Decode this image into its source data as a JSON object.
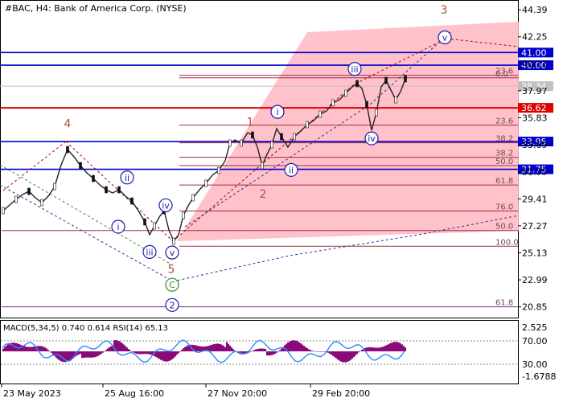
{
  "chart_data": {
    "type": "line",
    "title": "#BAC, H4:  Bank of America Corp. (NYSE)",
    "price_axis": {
      "ticks": [
        44.39,
        42.25,
        40.11,
        37.97,
        35.83,
        33.69,
        31.55,
        29.41,
        27.27,
        25.13,
        22.99,
        20.85
      ],
      "range": [
        20.0,
        45.1
      ]
    },
    "time_axis": {
      "labels": [
        "23 May 2023",
        "25 Aug 16:00",
        "27 Nov 20:00",
        "29 Feb 20:00"
      ]
    },
    "price_levels": [
      {
        "value": 41.0,
        "label": "41.00",
        "color": "#0000cc"
      },
      {
        "value": 40.0,
        "label": "40.00",
        "color": "#0000cc"
      },
      {
        "value": 36.62,
        "label": "36.62",
        "color": "#dd0000"
      },
      {
        "value": 33.95,
        "label": "33.95",
        "color": "#0000cc"
      },
      {
        "value": 31.75,
        "label": "31.75",
        "color": "#0000cc"
      }
    ],
    "current_price": {
      "value": 38.34,
      "label": "38.34"
    },
    "fib_levels": [
      {
        "value": 39.2,
        "label": "23.6"
      },
      {
        "value": 39.0,
        "label": "0.0"
      },
      {
        "value": 35.25,
        "label": "23.6"
      },
      {
        "value": 33.85,
        "label": "38.2"
      },
      {
        "value": 32.7,
        "label": "38.2"
      },
      {
        "value": 32.05,
        "label": "50.0"
      },
      {
        "value": 30.5,
        "label": "61.8"
      },
      {
        "value": 28.45,
        "label": "76.0"
      },
      {
        "value": 26.9,
        "label": "50.0"
      },
      {
        "value": 25.65,
        "label": "100.0"
      },
      {
        "value": 20.85,
        "label": "61.8"
      }
    ],
    "wave_labels": [
      {
        "text": "4",
        "x": 0.0,
        "y": 35.4,
        "style": "brown"
      },
      {
        "text": "5",
        "x": 0.0,
        "y": 23.85,
        "style": "brown"
      },
      {
        "text": "1",
        "x": 0.0,
        "y": 35.5,
        "style": "brown"
      },
      {
        "text": "2",
        "x": 0.0,
        "y": 29.8,
        "style": "brown"
      },
      {
        "text": "3",
        "x": 0.0,
        "y": 44.4,
        "style": "brown"
      },
      {
        "text": "C",
        "x": 0.0,
        "y": 22.6,
        "style": "green-circle"
      },
      {
        "text": "2",
        "x": 0.0,
        "y": 21.0,
        "style": "navy-circle"
      },
      {
        "text": "ii",
        "x": 0.0,
        "y": 31.1,
        "style": "circle"
      },
      {
        "text": "i",
        "x": 0.0,
        "y": 27.2,
        "style": "circle"
      },
      {
        "text": "iii",
        "x": 0.0,
        "y": 25.2,
        "style": "circle"
      },
      {
        "text": "iv",
        "x": 0.0,
        "y": 28.9,
        "style": "circle"
      },
      {
        "text": "v",
        "x": 0.0,
        "y": 25.15,
        "style": "circle"
      },
      {
        "text": "i",
        "x": 0.0,
        "y": 36.3,
        "style": "circle"
      },
      {
        "text": "ii",
        "x": 0.0,
        "y": 31.7,
        "style": "circle"
      },
      {
        "text": "iii",
        "x": 0.0,
        "y": 39.7,
        "style": "circle"
      },
      {
        "text": "iv",
        "x": 0.0,
        "y": 34.2,
        "style": "circle"
      },
      {
        "text": "v",
        "x": 0.0,
        "y": 42.2,
        "style": "circle"
      }
    ],
    "indicator": {
      "title": "MACD(5,34,5) 0.740 0.614 RSI(14) 65.13",
      "ticks": [
        "2.525",
        "70.00",
        "30.00",
        "-1.6788"
      ]
    },
    "grid": false
  }
}
